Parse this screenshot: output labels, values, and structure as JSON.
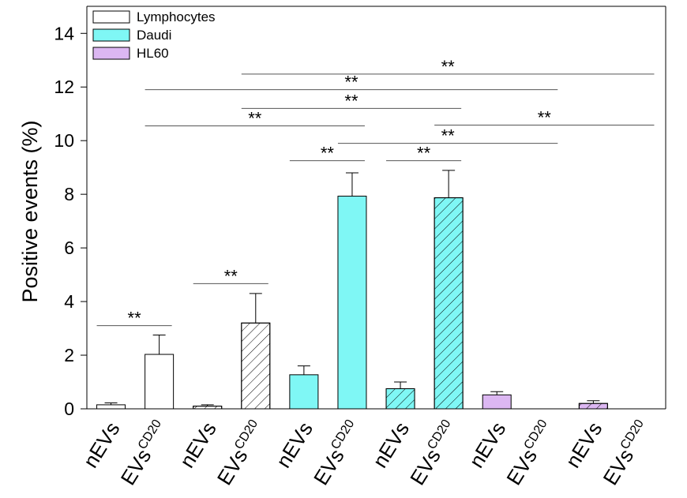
{
  "chart_data": {
    "type": "bar",
    "ylabel": "Positive events (%)",
    "ylim": [
      0,
      15
    ],
    "yticks": [
      0,
      2,
      4,
      6,
      8,
      10,
      12,
      14
    ],
    "grid": false,
    "legend_position": "top-left",
    "legend": [
      {
        "label": "Lymphocytes",
        "color": "#ffffff"
      },
      {
        "label": "Daudi",
        "color": "#7ff7f5"
      },
      {
        "label": "HL60",
        "color": "#dcb7f2"
      }
    ],
    "categories": [
      {
        "main": "nEVs",
        "sup": ""
      },
      {
        "main": "EVs",
        "sup": "CD20"
      },
      {
        "main": "nEVs",
        "sup": ""
      },
      {
        "main": "EVs",
        "sup": "CD20"
      },
      {
        "main": "nEVs",
        "sup": ""
      },
      {
        "main": "EVs",
        "sup": "CD20"
      },
      {
        "main": "nEVs",
        "sup": ""
      },
      {
        "main": "EVs",
        "sup": "CD20"
      },
      {
        "main": "nEVs",
        "sup": ""
      },
      {
        "main": "EVs",
        "sup": "CD20"
      },
      {
        "main": "nEVs",
        "sup": ""
      },
      {
        "main": "EVs",
        "sup": "CD20"
      }
    ],
    "bars": [
      {
        "value": 0.15,
        "error": 0.07,
        "cell": "Lymphocytes",
        "hatched": false
      },
      {
        "value": 2.03,
        "error": 0.72,
        "cell": "Lymphocytes",
        "hatched": false
      },
      {
        "value": 0.1,
        "error": 0.05,
        "cell": "Lymphocytes",
        "hatched": true
      },
      {
        "value": 3.2,
        "error": 1.1,
        "cell": "Lymphocytes",
        "hatched": true
      },
      {
        "value": 1.27,
        "error": 0.33,
        "cell": "Daudi",
        "hatched": false
      },
      {
        "value": 7.93,
        "error": 0.87,
        "cell": "Daudi",
        "hatched": false
      },
      {
        "value": 0.75,
        "error": 0.25,
        "cell": "Daudi",
        "hatched": true
      },
      {
        "value": 7.87,
        "error": 1.02,
        "cell": "Daudi",
        "hatched": true
      },
      {
        "value": 0.52,
        "error": 0.12,
        "cell": "HL60",
        "hatched": false
      },
      {
        "value": 0.0,
        "error": 0.0,
        "cell": "HL60",
        "hatched": false
      },
      {
        "value": 0.2,
        "error": 0.1,
        "cell": "HL60",
        "hatched": true
      },
      {
        "value": 0.0,
        "error": 0.0,
        "cell": "HL60",
        "hatched": true
      }
    ],
    "significance": [
      {
        "from": 0,
        "to": 1,
        "y": 3.1,
        "label": "**"
      },
      {
        "from": 2,
        "to": 3,
        "y": 4.67,
        "label": "**"
      },
      {
        "from": 4,
        "to": 5,
        "y": 9.25,
        "label": "**"
      },
      {
        "from": 6,
        "to": 7,
        "y": 9.25,
        "label": "**"
      },
      {
        "from": 1,
        "to": 5,
        "y": 10.55,
        "label": "**"
      },
      {
        "from": 3,
        "to": 7,
        "y": 11.2,
        "label": "**"
      },
      {
        "from": 1,
        "to": 9,
        "y": 11.9,
        "label": "**"
      },
      {
        "from": 3,
        "to": 11,
        "y": 12.48,
        "label": "**"
      },
      {
        "from": 5,
        "to": 9,
        "y": 9.9,
        "label": "**"
      },
      {
        "from": 7,
        "to": 11,
        "y": 10.58,
        "label": "**"
      }
    ]
  }
}
